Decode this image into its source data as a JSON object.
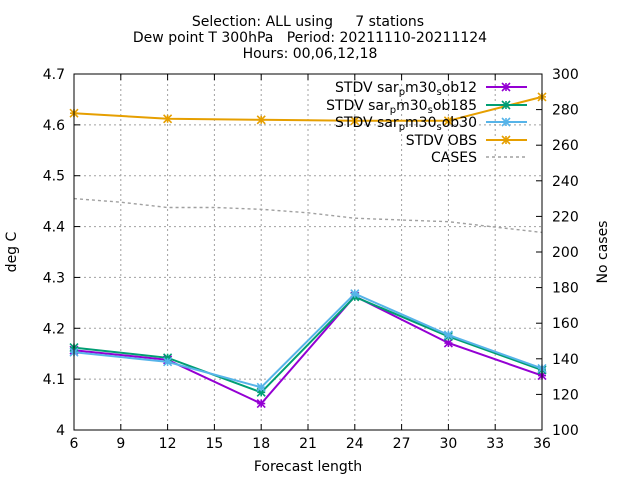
{
  "chart_data": {
    "type": "line",
    "title_lines": [
      "Selection: ALL using     7 stations",
      "Dew point T 300hPa   Period: 20211110-20211124",
      "Hours: 00,06,12,18"
    ],
    "xlabel": "Forecast length",
    "ylabel": "deg C",
    "y2label": "No cases",
    "xlim": [
      6,
      36
    ],
    "ylim": [
      4.0,
      4.7
    ],
    "y2lim": [
      100,
      300
    ],
    "xticks": [
      "6",
      "9",
      "12",
      "15",
      "18",
      "21",
      "24",
      "27",
      "30",
      "33",
      "36"
    ],
    "yticks": [
      "4",
      "4.1",
      "4.2",
      "4.3",
      "4.4",
      "4.5",
      "4.6",
      "4.7"
    ],
    "y2ticks": [
      "100",
      "120",
      "140",
      "160",
      "180",
      "200",
      "220",
      "240",
      "260",
      "280",
      "300"
    ],
    "grid": true,
    "legend_position": "top-right",
    "x": [
      6,
      12,
      18,
      24,
      30,
      36
    ],
    "series": [
      {
        "name": "STDV sar_m30_sob12",
        "legend_parts": [
          "STDV sar",
          "p",
          "m30",
          "s",
          "ob12"
        ],
        "color": "#9400d3",
        "marker": "x",
        "axis": "y",
        "values": [
          4.157,
          4.138,
          4.052,
          4.263,
          4.171,
          4.107
        ]
      },
      {
        "name": "STDV sar_m30_sob185",
        "legend_parts": [
          "STDV sar",
          "p",
          "m30",
          "s",
          "ob185"
        ],
        "color": "#009e73",
        "marker": "x",
        "axis": "y",
        "values": [
          4.162,
          4.142,
          4.074,
          4.262,
          4.184,
          4.118
        ]
      },
      {
        "name": "STDV sar_m30_sob30",
        "legend_parts": [
          "STDV sar",
          "p",
          "m30",
          "s",
          "ob30"
        ],
        "color": "#56b4e9",
        "marker": "x",
        "axis": "y",
        "values": [
          4.153,
          4.134,
          4.084,
          4.268,
          4.187,
          4.121
        ]
      },
      {
        "name": "STDV OBS",
        "legend_parts": [
          "STDV OBS",
          "",
          "",
          "",
          ""
        ],
        "color": "#e69f00",
        "marker": "x",
        "axis": "y",
        "values": [
          4.623,
          4.612,
          4.61,
          4.608,
          4.608,
          4.655
        ]
      },
      {
        "name": "CASES",
        "legend_parts": [
          "CASES",
          "",
          "",
          "",
          ""
        ],
        "color": "#a0a0a0",
        "marker": "none",
        "dashed": true,
        "axis": "y2",
        "x": [
          6,
          9,
          12,
          15,
          18,
          21,
          24,
          27,
          30,
          33,
          36
        ],
        "values": [
          230,
          228,
          225,
          225,
          224,
          222,
          219,
          218,
          217,
          214,
          211
        ]
      }
    ]
  }
}
